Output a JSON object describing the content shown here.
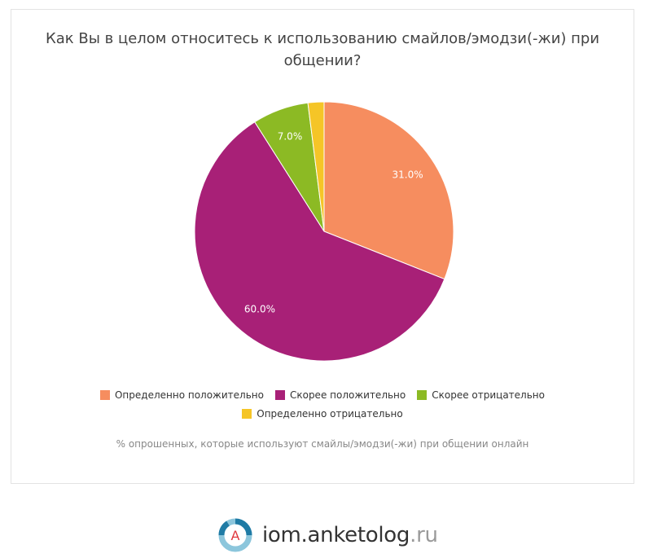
{
  "chart_data": {
    "type": "pie",
    "title": "Как Вы в целом относитесь к использованию смайлов/эмодзи(-жи) при общении?",
    "subtitle": "% опрошенных, которые используют смайлы/эмодзи(-жи) при общении онлайн",
    "series": [
      {
        "name": "Определенно положительно",
        "value": 31.0,
        "label": "31.0%",
        "color": "#f68d5f"
      },
      {
        "name": "Скорее положительно",
        "value": 60.0,
        "label": "60.0%",
        "color": "#a82077"
      },
      {
        "name": "Скорее отрицательно",
        "value": 7.0,
        "label": "7.0%",
        "color": "#8cba24"
      },
      {
        "name": "Определенно отрицательно",
        "value": 2.0,
        "label": "",
        "color": "#f5c527"
      }
    ],
    "legend_position": "bottom"
  },
  "brand": {
    "name": "iom.anketolog",
    "tld": ".ru",
    "logo_letter": "A"
  }
}
